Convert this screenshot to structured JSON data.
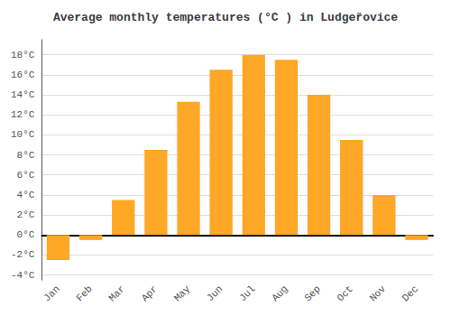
{
  "chart_data": {
    "type": "bar",
    "title": "Average monthly temperatures (°C ) in Ludgeřovice",
    "categories": [
      "Jan",
      "Feb",
      "Mar",
      "Apr",
      "May",
      "Jun",
      "Jul",
      "Aug",
      "Sep",
      "Oct",
      "Nov",
      "Dec"
    ],
    "values": [
      -2.5,
      -0.5,
      3.5,
      8.5,
      13.3,
      16.5,
      18.0,
      17.5,
      14.0,
      9.5,
      4.0,
      -0.5
    ],
    "color": "#FFA726",
    "ylim": [
      -4.5,
      19.5
    ],
    "yticks": [
      {
        "value": -4,
        "label": "-4°C"
      },
      {
        "value": -2,
        "label": "-2°C"
      },
      {
        "value": 0,
        "label": "0°C"
      },
      {
        "value": 2,
        "label": "2°C"
      },
      {
        "value": 4,
        "label": "4°C"
      },
      {
        "value": 6,
        "label": "6°C"
      },
      {
        "value": 8,
        "label": "8°C"
      },
      {
        "value": 10,
        "label": "10°C"
      },
      {
        "value": 12,
        "label": "12°C"
      },
      {
        "value": 14,
        "label": "14°C"
      },
      {
        "value": 16,
        "label": "16°C"
      },
      {
        "value": 18,
        "label": "18°C"
      }
    ],
    "grid": true
  }
}
